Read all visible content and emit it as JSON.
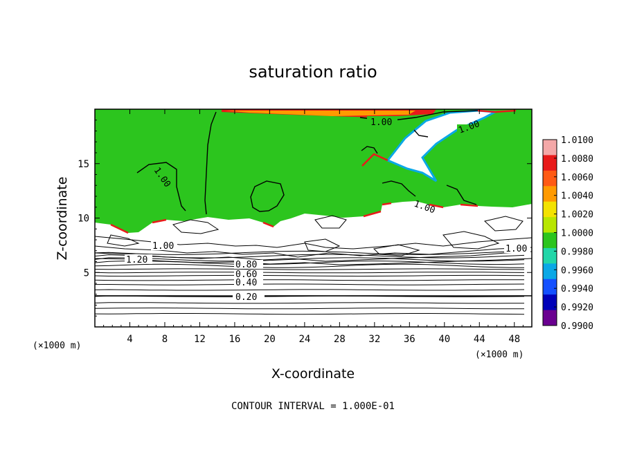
{
  "chart_data": {
    "type": "heatmap",
    "title": "saturation ratio",
    "xlabel": "X-coordinate",
    "ylabel": "Z-coordinate",
    "x_unit": "(×1000 m)",
    "xlim": [
      0,
      50
    ],
    "ylim": [
      0,
      20
    ],
    "x_ticks": [
      4,
      8,
      12,
      16,
      20,
      24,
      28,
      32,
      36,
      40,
      44,
      48
    ],
    "y_ticks": [
      5,
      10,
      15
    ],
    "colorbar": {
      "range": [
        0.99,
        1.01
      ],
      "ticks": [
        "1.0100",
        "1.0080",
        "1.0060",
        "1.0040",
        "1.0020",
        "1.0000",
        "0.9980",
        "0.9960",
        "0.9940",
        "0.9920",
        "0.9900"
      ],
      "colors": [
        "#f4a8a8",
        "#e81a1a",
        "#ff5a14",
        "#ff9a00",
        "#f3e200",
        "#b8e600",
        "#2cc51e",
        "#22d6a8",
        "#0aa8e6",
        "#1450ff",
        "#0000b8",
        "#6a0090"
      ]
    },
    "contour_interval": "1.000E-01",
    "footer": "CONTOUR INTERVAL = 1.000E-01",
    "contour_labels": [
      "1.00",
      "1.00",
      "1.00",
      "1.00",
      "1.00",
      "1.00",
      "1.20",
      "0.80",
      "0.60",
      "0.40",
      "0.20"
    ],
    "regions": {
      "sub_saturated_below_km": 9.5,
      "colored_field_above_km": 9.5,
      "field_color": "#2cc51e"
    },
    "stratified_contour_levels_km": [
      1.2,
      1.7,
      2.2,
      2.8,
      3.4,
      3.9,
      4.3,
      4.7,
      5.0,
      5.3,
      5.6,
      5.9,
      6.2,
      6.5,
      6.8
    ]
  }
}
